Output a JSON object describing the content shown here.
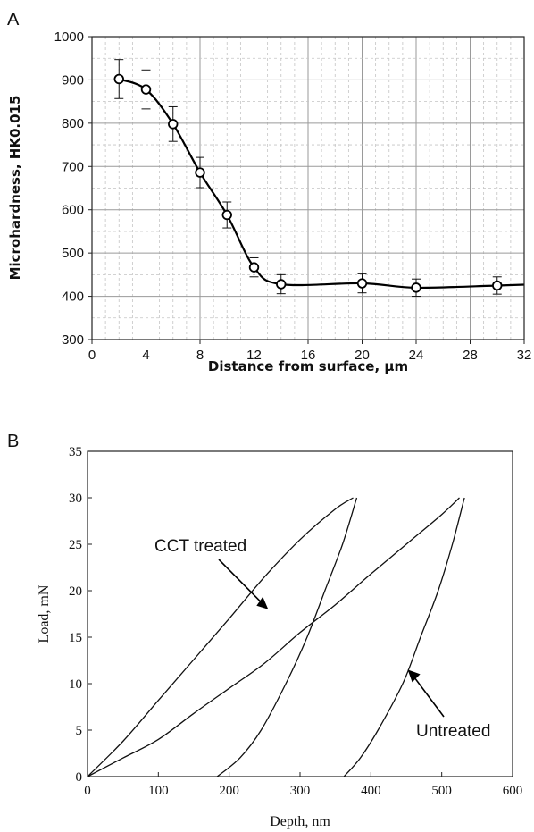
{
  "chart_data": [
    {
      "panel": "A",
      "type": "line",
      "xlabel": "Distance from surface, µm",
      "ylabel": "Microhardness,  HK0.015",
      "xlim": [
        0,
        32
      ],
      "ylim": [
        300,
        1000
      ],
      "xticks": [
        0,
        4,
        8,
        12,
        16,
        20,
        24,
        28,
        32
      ],
      "yticks": [
        300,
        400,
        500,
        600,
        700,
        800,
        900,
        1000
      ],
      "grid": true,
      "legend": "none",
      "markers": "open-circle",
      "points": [
        {
          "x": 2,
          "y": 902,
          "err": 45
        },
        {
          "x": 4,
          "y": 878,
          "err": 45
        },
        {
          "x": 6,
          "y": 798,
          "err": 40
        },
        {
          "x": 8,
          "y": 686,
          "err": 35
        },
        {
          "x": 10,
          "y": 588,
          "err": 30
        },
        {
          "x": 12,
          "y": 467,
          "err": 22
        },
        {
          "x": 14,
          "y": 428,
          "err": 22
        },
        {
          "x": 20,
          "y": 430,
          "err": 22
        },
        {
          "x": 24,
          "y": 420,
          "err": 20
        },
        {
          "x": 30,
          "y": 425,
          "err": 20
        }
      ],
      "line_end": {
        "x": 32,
        "y": 427
      }
    },
    {
      "panel": "B",
      "type": "line",
      "xlabel": "Depth, nm",
      "ylabel": "Load, mN",
      "xlim": [
        0,
        600
      ],
      "ylim": [
        0,
        35
      ],
      "xticks": [
        0,
        100,
        200,
        300,
        400,
        500,
        600
      ],
      "yticks": [
        0,
        5,
        10,
        15,
        20,
        25,
        30,
        35
      ],
      "grid": false,
      "series": [
        {
          "name": "CCT treated",
          "loading": [
            [
              0,
              0
            ],
            [
              50,
              3.8
            ],
            [
              100,
              8.2
            ],
            [
              150,
              12.6
            ],
            [
              200,
              17.0
            ],
            [
              250,
              21.5
            ],
            [
              300,
              25.5
            ],
            [
              350,
              28.8
            ],
            [
              375,
              30
            ]
          ],
          "unloading": [
            [
              380,
              30
            ],
            [
              360,
              25
            ],
            [
              335,
              20
            ],
            [
              310,
              15
            ],
            [
              280,
              10
            ],
            [
              245,
              5
            ],
            [
              215,
              2
            ],
            [
              183,
              0
            ]
          ]
        },
        {
          "name": "Untreated",
          "loading": [
            [
              0,
              0
            ],
            [
              50,
              2.0
            ],
            [
              100,
              4.0
            ],
            [
              150,
              6.8
            ],
            [
              200,
              9.5
            ],
            [
              250,
              12.2
            ],
            [
              300,
              15.5
            ],
            [
              350,
              18.5
            ],
            [
              400,
              21.8
            ],
            [
              450,
              25.0
            ],
            [
              500,
              28.2
            ],
            [
              525,
              30
            ]
          ],
          "unloading": [
            [
              532,
              30
            ],
            [
              515,
              25
            ],
            [
              495,
              20
            ],
            [
              470,
              15
            ],
            [
              445,
              10
            ],
            [
              410,
              5
            ],
            [
              385,
              2
            ],
            [
              362,
              0
            ]
          ]
        }
      ],
      "annotations": [
        {
          "text": "CCT treated",
          "target": [
            255,
            18
          ]
        },
        {
          "text": "Untreated",
          "target": [
            452,
            11.5
          ]
        }
      ]
    }
  ],
  "panels": {
    "A": "A",
    "B": "B"
  }
}
